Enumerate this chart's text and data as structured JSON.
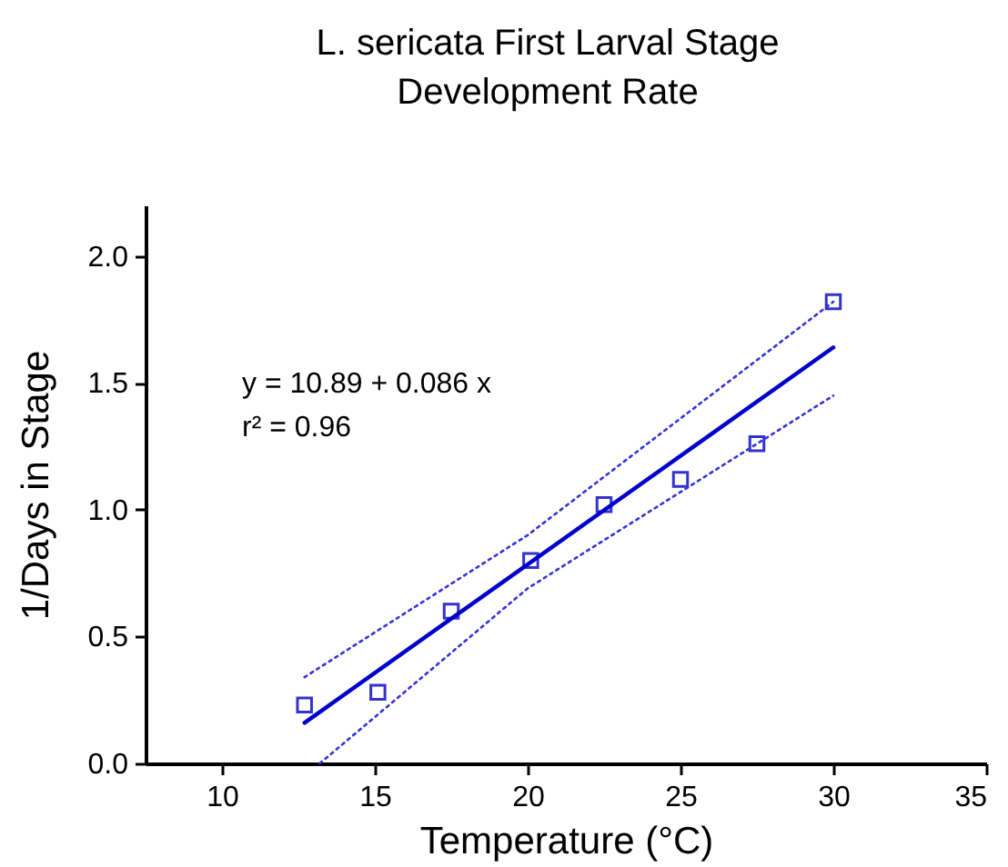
{
  "chart_data": {
    "type": "scatter",
    "title": "L. sericata First Larval Stage Development Rate",
    "xlabel": "Temperature (°C)",
    "ylabel": "1/Days in Stage",
    "xlim": [
      7.5,
      35
    ],
    "xticks": [
      10,
      15,
      20,
      25,
      30,
      35
    ],
    "ylim": [
      0,
      2.2
    ],
    "yticks": [
      {
        "value": 0,
        "label": "0.0"
      },
      0.5,
      {
        "value": 1,
        "label": "1.0"
      },
      1.5,
      {
        "value": 2,
        "label": "2.0"
      }
    ],
    "grid": false,
    "annotations": [
      "y = 10.89 + 0.086 x",
      "r² = 0.96"
    ],
    "series": [
      {
        "marker": "square",
        "color": "#3333cc",
        "x": [
          12.7,
          15.1,
          17.5,
          20.1,
          22.5,
          25,
          27.5,
          30
        ],
        "values": [
          0.23,
          0.28,
          0.6,
          0.8,
          1.02,
          1.12,
          1.26,
          1.82
        ]
      },
      {
        "type": "line",
        "marker": "none",
        "color": "#0000cc",
        "line_style": "solid",
        "x": [
          12.7,
          30
        ],
        "values": [
          0.16,
          1.64
        ]
      },
      {
        "type": "line",
        "marker": "none",
        "color": "#3333dd",
        "line_style": "dotted",
        "x": [
          12.7,
          20,
          30
        ],
        "values": [
          0.34,
          0.9,
          1.82
        ]
      },
      {
        "type": "line",
        "marker": "none",
        "color": "#3333dd",
        "line_style": "dotted",
        "x": [
          13.2,
          20,
          30
        ],
        "values": [
          0,
          0.69,
          1.45
        ]
      }
    ]
  }
}
